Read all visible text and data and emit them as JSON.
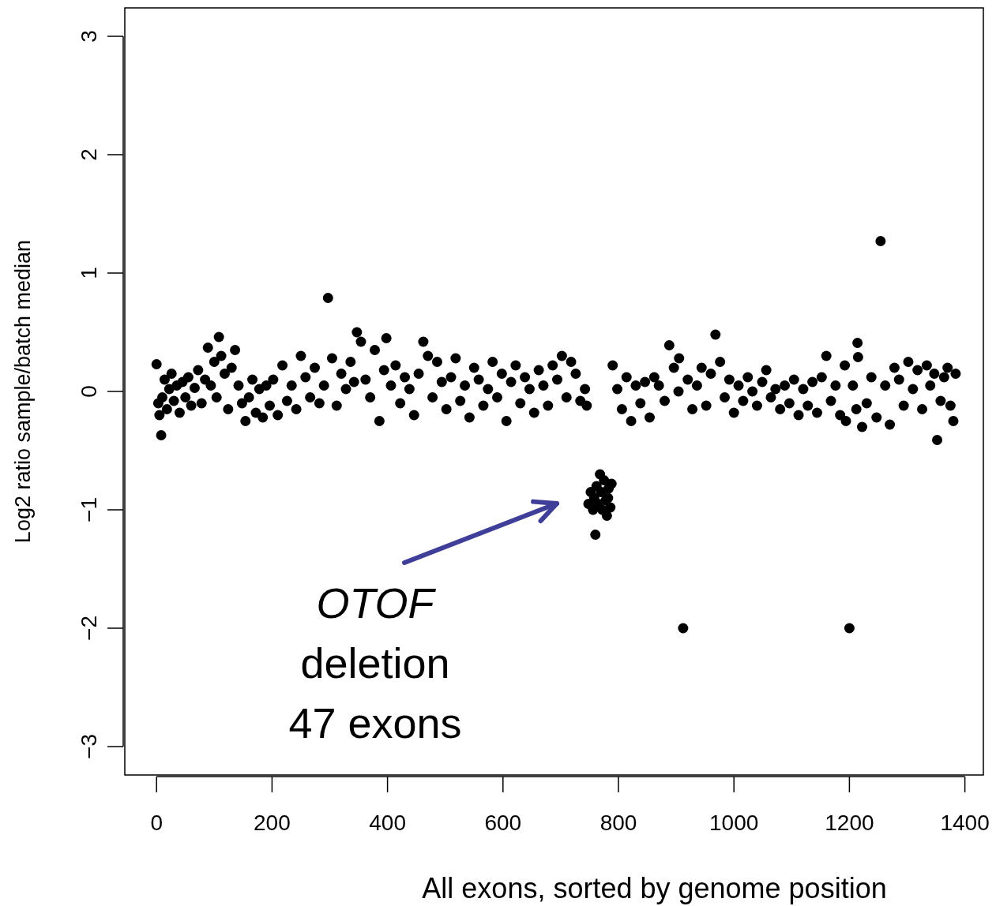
{
  "chart_data": {
    "type": "scatter",
    "xlabel": "All exons, sorted by genome position",
    "ylabel": "Log2 ratio sample/batch median",
    "xlim": [
      -55,
      1432
    ],
    "ylim": [
      -3.24,
      3.24
    ],
    "xticks": [
      0,
      200,
      400,
      600,
      800,
      1000,
      1200,
      1400
    ],
    "yticks": [
      {
        "value": -3,
        "label": "−3"
      },
      {
        "value": -2,
        "label": "−2"
      },
      {
        "value": -1,
        "label": "−1"
      },
      0,
      1,
      2,
      3
    ],
    "grid": false,
    "marker": "circle",
    "annotations": [
      "OTOF\ndeletion\n47 exons"
    ],
    "series": [
      {
        "color": "#000000",
        "x": [
          0,
          3,
          5,
          8,
          10,
          14,
          18,
          22,
          26,
          30,
          35,
          40,
          45,
          50,
          55,
          60,
          66,
          72,
          78,
          84,
          89,
          94,
          100,
          104,
          108,
          112,
          118,
          124,
          130,
          136,
          142,
          148,
          154,
          160,
          166,
          172,
          178,
          184,
          190,
          196,
          202,
          210,
          218,
          226,
          234,
          242,
          250,
          258,
          266,
          274,
          282,
          290,
          297,
          304,
          312,
          320,
          328,
          336,
          342,
          347,
          354,
          362,
          370,
          378,
          386,
          394,
          398,
          406,
          414,
          422,
          430,
          438,
          446,
          454,
          462,
          470,
          478,
          486,
          494,
          502,
          510,
          518,
          526,
          534,
          542,
          550,
          558,
          566,
          574,
          582,
          590,
          598,
          606,
          614,
          622,
          630,
          638,
          646,
          654,
          662,
          670,
          678,
          686,
          694,
          702,
          710,
          718,
          726,
          734,
          742,
          745,
          748,
          752,
          756,
          758,
          760,
          762,
          765,
          768,
          770,
          772,
          775,
          778,
          780,
          783,
          786,
          788,
          782,
          790,
          798,
          806,
          814,
          822,
          830,
          838,
          846,
          854,
          862,
          870,
          880,
          888,
          896,
          904,
          905,
          912,
          920,
          928,
          936,
          944,
          952,
          960,
          968,
          976,
          984,
          992,
          1000,
          1008,
          1016,
          1024,
          1032,
          1040,
          1049,
          1056,
          1064,
          1072,
          1080,
          1088,
          1096,
          1104,
          1112,
          1120,
          1128,
          1136,
          1144,
          1152,
          1160,
          1168,
          1176,
          1184,
          1192,
          1194,
          1200,
          1206,
          1212,
          1214,
          1215,
          1222,
          1230,
          1238,
          1247,
          1254,
          1262,
          1270,
          1278,
          1286,
          1294,
          1302,
          1310,
          1318,
          1326,
          1334,
          1340,
          1347,
          1352,
          1358,
          1364,
          1370,
          1375,
          1380,
          1384
        ],
        "values": [
          0.23,
          -0.1,
          -0.2,
          -0.37,
          -0.05,
          0.1,
          -0.15,
          0.02,
          0.15,
          -0.08,
          0.05,
          -0.18,
          0.08,
          -0.05,
          0.12,
          -0.12,
          0.03,
          0.18,
          -0.1,
          0.1,
          0.37,
          0.05,
          0.25,
          -0.05,
          0.46,
          0.3,
          0.15,
          -0.15,
          0.2,
          0.35,
          0.05,
          -0.1,
          -0.25,
          -0.05,
          0.1,
          -0.18,
          0.02,
          -0.22,
          0.05,
          -0.12,
          0.1,
          -0.2,
          0.22,
          -0.08,
          0.05,
          -0.15,
          0.3,
          0.12,
          -0.05,
          0.2,
          -0.1,
          0.05,
          0.79,
          0.28,
          -0.12,
          0.15,
          0.02,
          0.25,
          0.08,
          0.5,
          0.42,
          0.1,
          -0.05,
          0.35,
          -0.25,
          0.18,
          0.45,
          0.05,
          0.22,
          -0.1,
          0.12,
          0.02,
          -0.2,
          0.15,
          0.42,
          0.3,
          -0.05,
          0.25,
          0.08,
          -0.15,
          0.12,
          0.28,
          -0.08,
          0.05,
          -0.22,
          0.2,
          0.1,
          -0.12,
          0.02,
          0.25,
          -0.05,
          0.15,
          -0.25,
          0.08,
          0.22,
          -0.1,
          0.12,
          0.02,
          -0.18,
          0.18,
          0.05,
          -0.12,
          0.22,
          0.1,
          0.3,
          -0.05,
          0.25,
          0.15,
          -0.08,
          0.02,
          -0.12,
          -0.95,
          -0.85,
          -1.0,
          -0.9,
          -1.21,
          -0.8,
          -0.95,
          -0.7,
          -0.85,
          -1.0,
          -0.75,
          -0.92,
          -1.05,
          -0.82,
          -0.98,
          -0.78,
          -0.9,
          0.22,
          0.02,
          -0.15,
          0.12,
          -0.25,
          0.05,
          -0.1,
          0.08,
          -0.22,
          0.12,
          0.05,
          -0.08,
          0.39,
          0.2,
          0.0,
          0.28,
          -2.0,
          0.1,
          -0.15,
          0.05,
          0.2,
          -0.12,
          0.15,
          0.48,
          0.25,
          -0.05,
          0.1,
          -0.18,
          0.05,
          -0.08,
          0.12,
          0.0,
          -0.12,
          0.08,
          0.18,
          -0.05,
          0.02,
          -0.15,
          0.05,
          -0.1,
          0.1,
          -0.2,
          0.02,
          -0.12,
          0.08,
          -0.18,
          0.12,
          0.3,
          -0.08,
          0.05,
          -0.2,
          0.22,
          -0.25,
          -2.0,
          0.05,
          -0.15,
          0.41,
          0.29,
          -0.3,
          -0.1,
          0.12,
          -0.22,
          1.27,
          0.05,
          -0.28,
          0.2,
          0.1,
          -0.12,
          0.25,
          0.02,
          0.18,
          -0.15,
          0.22,
          0.05,
          0.15,
          -0.41,
          -0.08,
          0.12,
          0.2,
          -0.12,
          -0.25,
          0.15
        ]
      }
    ]
  }
}
